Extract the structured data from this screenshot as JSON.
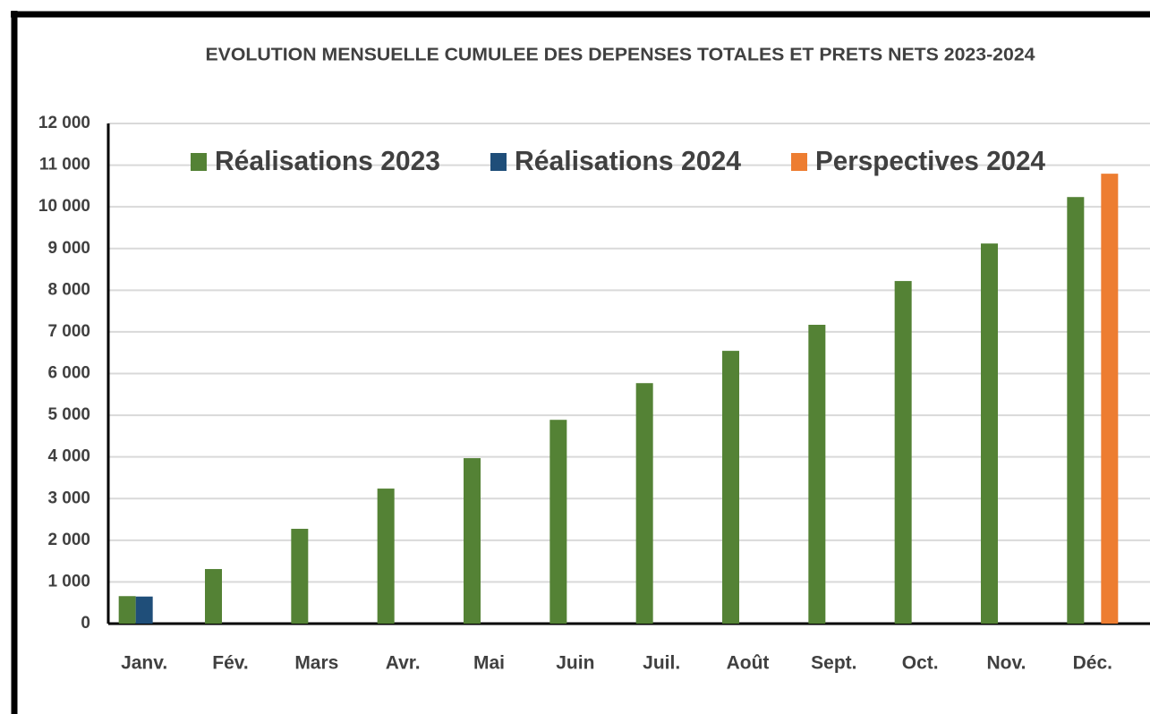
{
  "chart_data": {
    "type": "bar",
    "title": "EVOLUTION MENSUELLE CUMULEE DES DEPENSES TOTALES ET PRETS NETS 2023-2024",
    "categories": [
      "Janv.",
      "Fév.",
      "Mars",
      "Avr.",
      "Mai",
      "Juin",
      "Juil.",
      "Août",
      "Sept.",
      "Oct.",
      "Nov.",
      "Déc."
    ],
    "series": [
      {
        "name": "Réalisations 2023",
        "color": "#548235",
        "values": [
          660,
          1310,
          2275,
          3240,
          3970,
          4890,
          5770,
          6545,
          7170,
          8220,
          9120,
          10235
        ]
      },
      {
        "name": "Réalisations 2024",
        "color": "#1f4e79",
        "values": [
          650,
          null,
          null,
          null,
          null,
          null,
          null,
          null,
          null,
          null,
          null,
          null
        ]
      },
      {
        "name": "Perspectives 2024",
        "color": "#ed7d31",
        "values": [
          null,
          null,
          null,
          null,
          null,
          null,
          null,
          null,
          null,
          null,
          null,
          10795
        ]
      }
    ],
    "ylim": [
      0,
      12000
    ],
    "yticks": [
      0,
      {
        "value": 1000,
        "label": "1 000"
      },
      {
        "value": 2000,
        "label": "2 000"
      },
      {
        "value": 3000,
        "label": "3 000"
      },
      {
        "value": 4000,
        "label": "4 000"
      },
      {
        "value": 5000,
        "label": "5 000"
      },
      {
        "value": 6000,
        "label": "6 000"
      },
      {
        "value": 7000,
        "label": "7 000"
      },
      {
        "value": 8000,
        "label": "8 000"
      },
      {
        "value": 9000,
        "label": "9 000"
      },
      {
        "value": 10000,
        "label": "10 000"
      },
      {
        "value": 11000,
        "label": "11 000"
      },
      {
        "value": 12000,
        "label": "12 000"
      }
    ],
    "grid": true,
    "legend": "top"
  }
}
